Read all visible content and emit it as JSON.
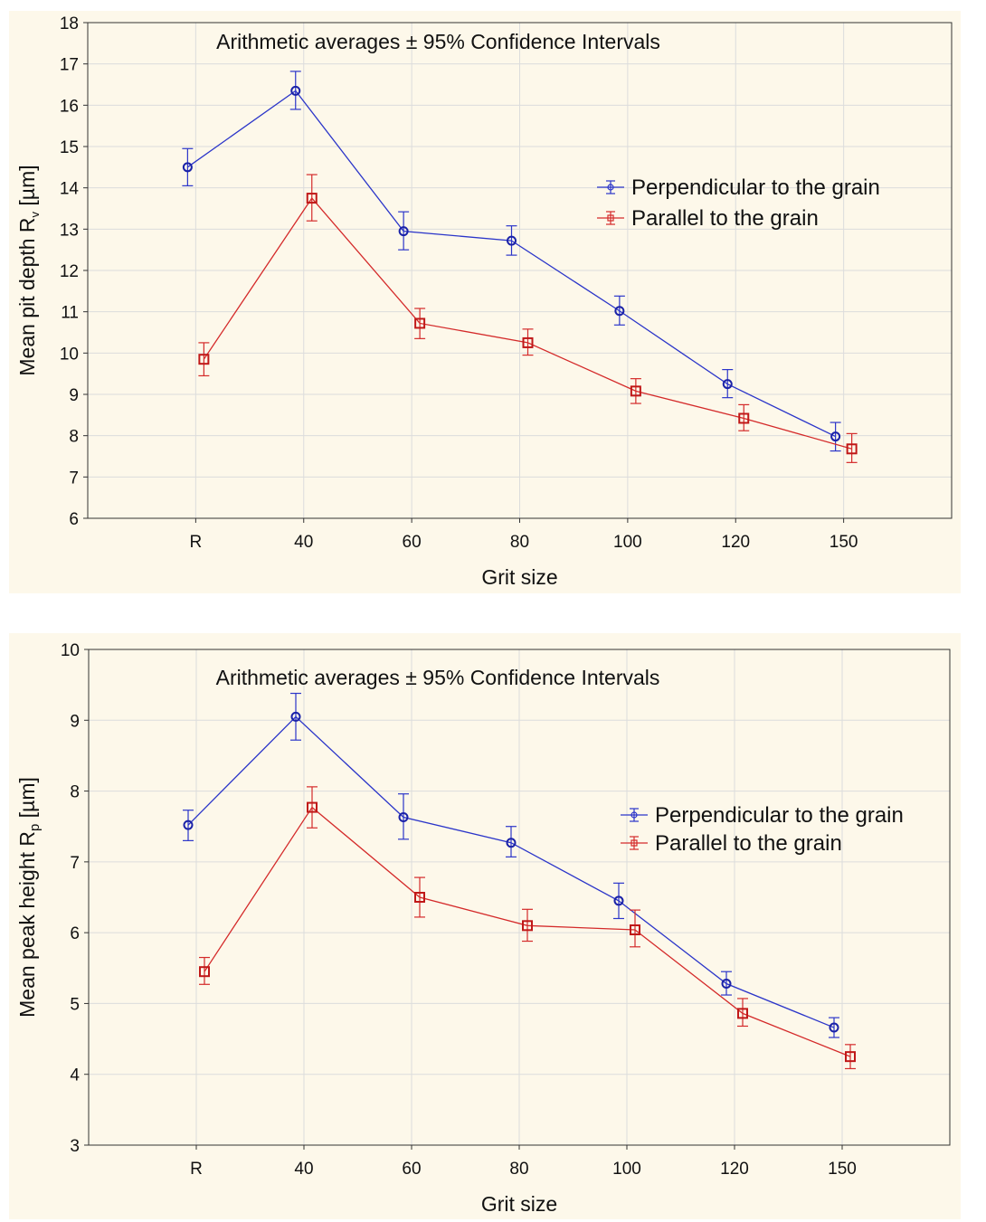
{
  "chart_data": [
    {
      "type": "line",
      "title": "Arithmetic averages ± 95% Confidence Intervals",
      "xlabel": "Grit size",
      "ylabel": "Mean pit depth Rv [µm]",
      "ylabel_parts": {
        "main": "Mean pit depth R",
        "sub": "v",
        "unit": " [µm]"
      },
      "categories": [
        "R",
        "40",
        "60",
        "80",
        "100",
        "120",
        "150"
      ],
      "ylim": [
        6,
        18
      ],
      "yticks": [
        6,
        7,
        8,
        9,
        10,
        11,
        12,
        13,
        14,
        15,
        16,
        17,
        18
      ],
      "grid": true,
      "legend_position": "right",
      "series": [
        {
          "name": "Perpendicular to the grain",
          "marker": "circle",
          "color": "#2b35c9",
          "values": [
            14.5,
            16.35,
            12.95,
            12.72,
            11.02,
            9.25,
            7.98
          ],
          "lower": [
            14.05,
            15.9,
            12.5,
            12.37,
            10.68,
            8.92,
            7.63
          ],
          "upper": [
            14.95,
            16.82,
            13.42,
            13.08,
            11.38,
            9.6,
            8.32
          ]
        },
        {
          "name": "Parallel to the grain",
          "marker": "square",
          "color": "#d42a2a",
          "values": [
            9.85,
            13.75,
            10.72,
            10.25,
            9.08,
            8.42,
            7.68
          ],
          "lower": [
            9.45,
            13.2,
            10.35,
            9.95,
            8.78,
            8.12,
            7.35
          ],
          "upper": [
            10.25,
            14.32,
            11.08,
            10.58,
            9.38,
            8.75,
            8.05
          ]
        }
      ]
    },
    {
      "type": "line",
      "title": "Arithmetic averages ± 95% Confidence Intervals",
      "xlabel": "Grit size",
      "ylabel": "Mean peak height Rp [µm]",
      "ylabel_parts": {
        "main": "Mean peak height R",
        "sub": "p",
        "unit": " [µm]"
      },
      "categories": [
        "R",
        "40",
        "60",
        "80",
        "100",
        "120",
        "150"
      ],
      "ylim": [
        3,
        10
      ],
      "yticks": [
        3,
        4,
        5,
        6,
        7,
        8,
        9,
        10
      ],
      "grid": true,
      "legend_position": "right",
      "series": [
        {
          "name": "Perpendicular to the grain",
          "marker": "circle",
          "color": "#2b35c9",
          "values": [
            7.52,
            9.05,
            7.63,
            7.27,
            6.45,
            5.28,
            4.66
          ],
          "lower": [
            7.3,
            8.72,
            7.32,
            7.07,
            6.2,
            5.12,
            4.52
          ],
          "upper": [
            7.73,
            9.38,
            7.96,
            7.5,
            6.7,
            5.45,
            4.8
          ]
        },
        {
          "name": "Parallel to the grain",
          "marker": "square",
          "color": "#d42a2a",
          "values": [
            5.45,
            7.77,
            6.5,
            6.1,
            6.04,
            4.86,
            4.25
          ],
          "lower": [
            5.27,
            7.48,
            6.22,
            5.88,
            5.8,
            4.68,
            4.08
          ],
          "upper": [
            5.65,
            8.06,
            6.78,
            6.33,
            6.32,
            5.07,
            4.42
          ]
        }
      ]
    }
  ]
}
